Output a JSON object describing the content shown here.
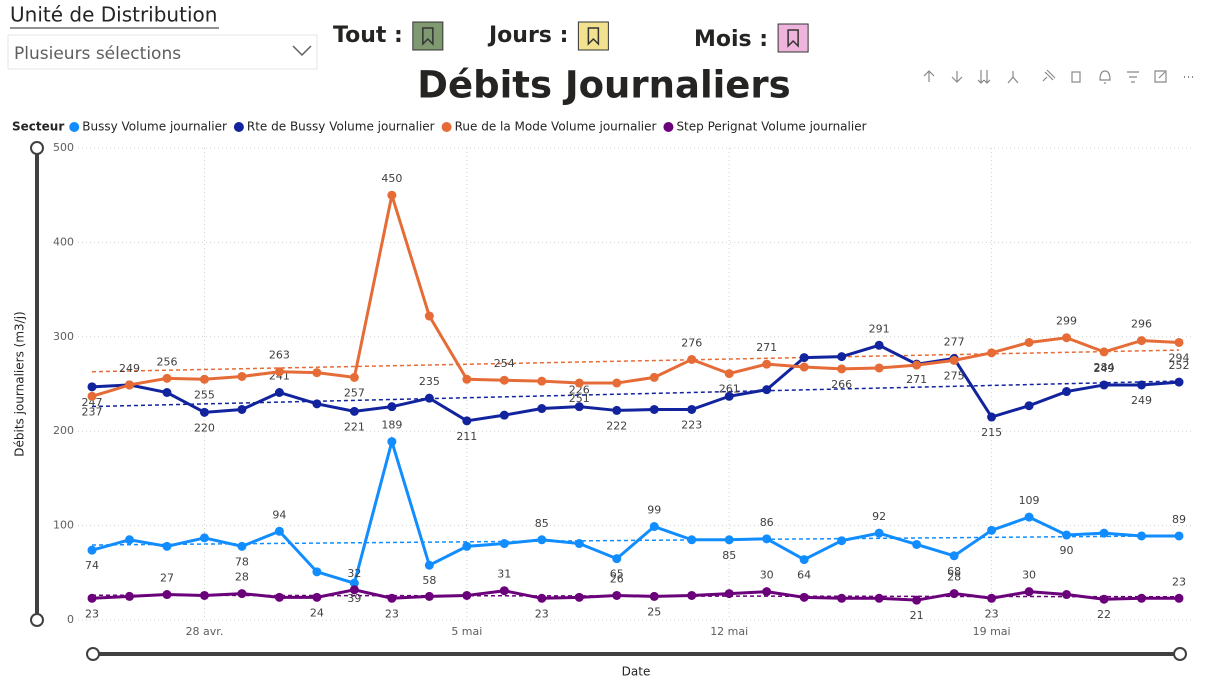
{
  "slicer": {
    "title": "Unité de Distribution",
    "value": "Plusieurs sélections"
  },
  "bookmarks": [
    {
      "label": "Tout :",
      "color": "#7f9a70"
    },
    {
      "label": "Jours :",
      "color": "#f2e290"
    },
    {
      "label": "Mois :",
      "color": "#eeb4dc"
    }
  ],
  "chart_data": {
    "type": "line",
    "title": "Débits Journaliers",
    "legend_title": "Secteur",
    "x_label": "Date",
    "y_label": "Débits journaliers (m3/j)",
    "categories": [
      null,
      null,
      null,
      "28 avr.",
      null,
      null,
      null,
      null,
      null,
      null,
      "5 mai",
      null,
      null,
      null,
      null,
      null,
      null,
      "12 mai",
      null,
      null,
      null,
      null,
      null,
      null,
      "19 mai",
      null,
      null,
      null,
      null,
      null
    ],
    "ylim": [
      0,
      500
    ],
    "yticks": [
      0,
      100,
      200,
      300,
      400,
      500
    ],
    "grid": true,
    "trendline": true,
    "series": [
      {
        "name": "Bussy Volume journalier",
        "color": "#118dff",
        "values": [
          74,
          85,
          78,
          87,
          78,
          94,
          51,
          39,
          189,
          58,
          78,
          81,
          85,
          81,
          65,
          99,
          85,
          85,
          86,
          64,
          84,
          92,
          80,
          68,
          95,
          109,
          90,
          92,
          89,
          89
        ],
        "value_labels": [
          "74",
          null,
          null,
          null,
          "78",
          "94",
          null,
          "39",
          "189",
          "58",
          null,
          null,
          "85",
          null,
          "65",
          "99",
          null,
          "85",
          "86",
          "64",
          null,
          "92",
          null,
          "68",
          null,
          "109",
          "90",
          null,
          null,
          "89"
        ]
      },
      {
        "name": "Rte de Bussy Volume journalier",
        "color": "#12239e",
        "values": [
          247,
          249,
          241,
          220,
          223,
          241,
          229,
          221,
          226,
          235,
          211,
          217,
          224,
          226,
          222,
          223,
          223,
          237,
          244,
          278,
          279,
          291,
          271,
          277,
          215,
          227,
          242,
          249,
          249,
          252
        ],
        "value_labels": [
          "247",
          null,
          null,
          "220",
          null,
          "241",
          null,
          "221",
          null,
          "235",
          "211",
          null,
          null,
          "226",
          "222",
          null,
          "223",
          null,
          null,
          null,
          null,
          "291",
          "271",
          "277",
          "215",
          null,
          null,
          "249",
          "249",
          "252"
        ]
      },
      {
        "name": "Rue de la Mode Volume journalier",
        "color": "#e66c37",
        "values": [
          237,
          249,
          256,
          255,
          258,
          263,
          262,
          257,
          450,
          322,
          255,
          254,
          253,
          251,
          251,
          257,
          276,
          261,
          271,
          268,
          266,
          267,
          270,
          275,
          283,
          294,
          299,
          284,
          296,
          294
        ],
        "value_labels": [
          "237",
          "249",
          "256",
          "255",
          null,
          "263",
          null,
          "257",
          "450",
          null,
          null,
          "254",
          null,
          "251",
          null,
          null,
          "276",
          "261",
          "271",
          null,
          "266",
          null,
          null,
          "275",
          null,
          null,
          "299",
          "284",
          "296",
          "294"
        ]
      },
      {
        "name": "Step Perignat Volume journalier",
        "color": "#6b007b",
        "values": [
          23,
          25,
          27,
          26,
          28,
          24,
          24,
          32,
          23,
          25,
          26,
          31,
          23,
          24,
          26,
          25,
          26,
          28,
          30,
          24,
          23,
          23,
          21,
          28,
          23,
          30,
          27,
          22,
          23,
          23
        ],
        "value_labels": [
          "23",
          null,
          "27",
          null,
          "28",
          null,
          "24",
          "32",
          "23",
          null,
          null,
          "31",
          "23",
          null,
          "26",
          "25",
          null,
          null,
          "30",
          null,
          null,
          null,
          "21",
          "28",
          "23",
          "30",
          null,
          "22",
          null,
          "23"
        ]
      }
    ]
  }
}
